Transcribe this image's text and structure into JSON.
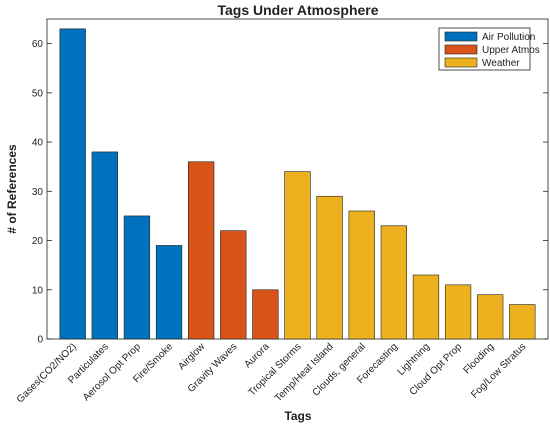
{
  "chart_data": {
    "type": "bar",
    "title": "Tags Under Atmosphere",
    "xlabel": "Tags",
    "ylabel": "# of References",
    "ylim": [
      0,
      65
    ],
    "yticks": [
      0,
      10,
      20,
      30,
      40,
      50,
      60
    ],
    "grid": false,
    "legend_position": "top-right",
    "categories": [
      "Gases(CO2/NO2)",
      "Particulates",
      "Aerosol Opt Prop",
      "Fire/Smoke",
      "Airglow",
      "Gravity Waves",
      "Aurora",
      "Tropical Storms",
      "Temp/Heat Island",
      "Clouds, general",
      "Forecasting",
      "Lightning",
      "Cloud Opt Prop",
      "Flooding",
      "Fog/Low Stratus"
    ],
    "series": [
      {
        "name": "Air Pollution",
        "color": "#0072BD",
        "values": [
          63,
          38,
          25,
          19,
          null,
          null,
          null,
          null,
          null,
          null,
          null,
          null,
          null,
          null,
          null
        ]
      },
      {
        "name": "Upper Atmos",
        "color": "#D95319",
        "values": [
          null,
          null,
          null,
          null,
          36,
          22,
          10,
          null,
          null,
          null,
          null,
          null,
          null,
          null,
          null
        ]
      },
      {
        "name": "Weather",
        "color": "#EDB120",
        "values": [
          null,
          null,
          null,
          null,
          null,
          null,
          null,
          34,
          29,
          26,
          23,
          13,
          11,
          9,
          7
        ]
      }
    ]
  }
}
